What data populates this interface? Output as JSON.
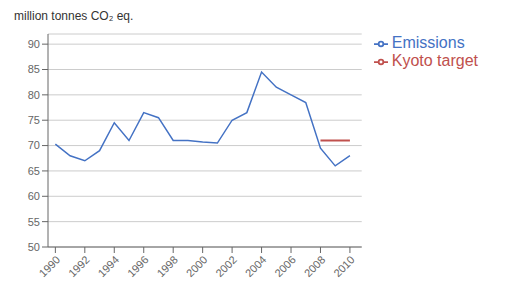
{
  "chart_data": {
    "type": "line",
    "ylabel": "million tonnes CO₂ eq.",
    "x": [
      1990,
      1991,
      1992,
      1993,
      1994,
      1995,
      1996,
      1997,
      1998,
      1999,
      2000,
      2001,
      2002,
      2003,
      2004,
      2005,
      2006,
      2007,
      2008,
      2009,
      2010
    ],
    "series": [
      {
        "name": "Emissions",
        "color": "#4472C4",
        "values": [
          70.3,
          68.0,
          67.0,
          69.0,
          74.5,
          71.0,
          76.5,
          75.5,
          71.0,
          71.0,
          70.7,
          70.5,
          75.0,
          76.5,
          84.5,
          81.5,
          80.0,
          78.5,
          69.5,
          66.0,
          68.0
        ]
      },
      {
        "name": "Kyoto target",
        "color": "#C0504D",
        "values": [
          null,
          null,
          null,
          null,
          null,
          null,
          null,
          null,
          null,
          null,
          null,
          null,
          null,
          null,
          null,
          null,
          null,
          null,
          71.0,
          71.0,
          71.0
        ]
      }
    ],
    "xlim": [
      1989.5,
      2010.8
    ],
    "xticks": [
      1990,
      1992,
      1994,
      1996,
      1998,
      2000,
      2002,
      2004,
      2006,
      2008,
      2010
    ],
    "ylim": [
      50,
      92
    ],
    "yticks": [
      50,
      55,
      60,
      65,
      70,
      75,
      80,
      85,
      90
    ],
    "grid": true,
    "legend": "right"
  }
}
